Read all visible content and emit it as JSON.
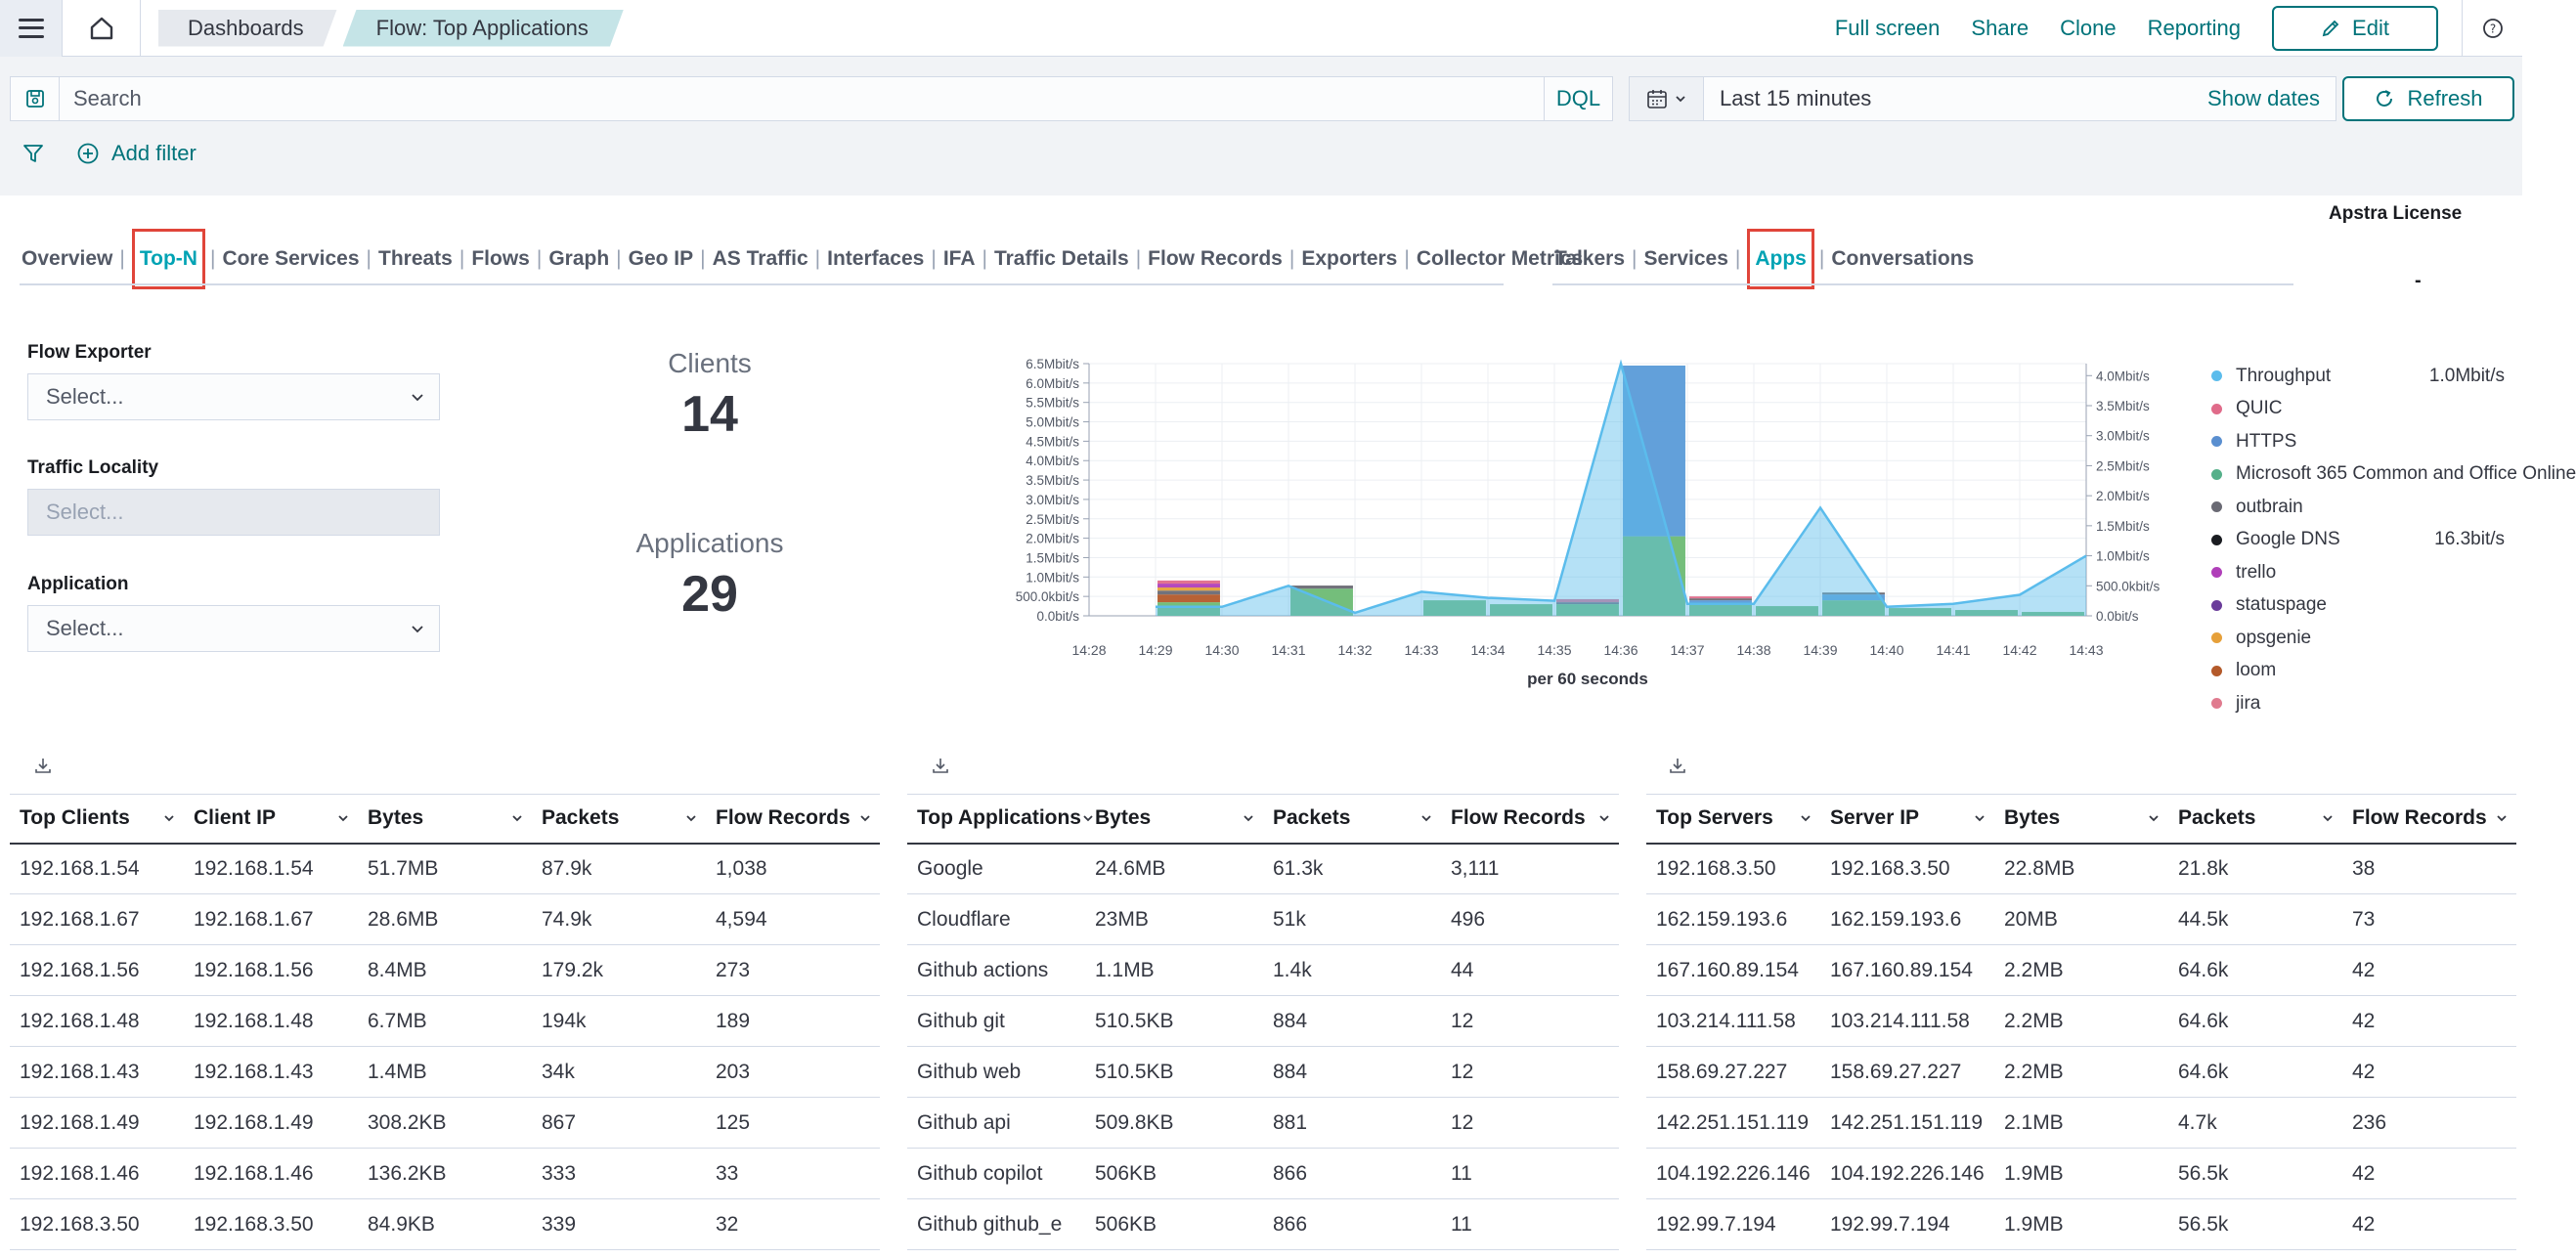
{
  "header": {
    "breadcrumbs": [
      "Dashboards",
      "Flow: Top Applications"
    ],
    "actions": [
      "Full screen",
      "Share",
      "Clone",
      "Reporting"
    ],
    "edit_label": "Edit"
  },
  "query": {
    "search_placeholder": "Search",
    "language": "DQL",
    "date_range": "Last 15 minutes",
    "show_dates": "Show dates",
    "refresh": "Refresh",
    "add_filter": "Add filter"
  },
  "nav": {
    "items": [
      "Overview",
      "Top-N",
      "Core Services",
      "Threats",
      "Flows",
      "Graph",
      "Geo IP",
      "AS Traffic",
      "Interfaces",
      "IFA",
      "Traffic Details",
      "Flow Records",
      "Exporters",
      "Collector Metrics"
    ],
    "active": "Top-N",
    "sub_items": [
      "Talkers",
      "Services",
      "Apps",
      "Conversations"
    ],
    "sub_active": "Apps"
  },
  "license": {
    "title": "Apstra License",
    "value": "-"
  },
  "controls": {
    "flow_exporter": {
      "label": "Flow Exporter",
      "placeholder": "Select..."
    },
    "traffic_locality": {
      "label": "Traffic Locality",
      "placeholder": "Select..."
    },
    "application": {
      "label": "Application",
      "placeholder": "Select..."
    }
  },
  "metrics": {
    "clients": {
      "label": "Clients",
      "value": "14"
    },
    "applications": {
      "label": "Applications",
      "value": "29"
    }
  },
  "chart_data": {
    "type": "bar",
    "xlabel": "per 60 seconds",
    "x_ticks": [
      "14:28",
      "14:29",
      "14:30",
      "14:31",
      "14:32",
      "14:33",
      "14:34",
      "14:35",
      "14:36",
      "14:37",
      "14:38",
      "14:39",
      "14:40",
      "14:41",
      "14:42",
      "14:43"
    ],
    "y_left_ticks": [
      "0.0bit/s",
      "500.0kbit/s",
      "1.0Mbit/s",
      "1.5Mbit/s",
      "2.0Mbit/s",
      "2.5Mbit/s",
      "3.0Mbit/s",
      "3.5Mbit/s",
      "4.0Mbit/s",
      "4.5Mbit/s",
      "5.0Mbit/s",
      "5.5Mbit/s",
      "6.0Mbit/s",
      "6.5Mbit/s"
    ],
    "y_right_ticks": [
      "0.0bit/s",
      "500.0kbit/s",
      "1.0Mbit/s",
      "1.5Mbit/s",
      "2.0Mbit/s",
      "2.5Mbit/s",
      "3.0Mbit/s",
      "3.5Mbit/s",
      "4.0Mbit/s"
    ],
    "ylim_left_mbit": [
      0,
      6.5
    ],
    "ylim_right_mbit": [
      0,
      4.2
    ],
    "bar_minutes": [
      "14:29",
      "14:31",
      "14:33",
      "14:34",
      "14:35",
      "14:36",
      "14:37",
      "14:38",
      "14:39",
      "14:40",
      "14:41",
      "14:42"
    ],
    "series": [
      {
        "name": "Microsoft 365 Common and Office Online",
        "color": "#6dbb74",
        "values_mbit": [
          0.35,
          0.7,
          0.4,
          0.3,
          0.3,
          2.05,
          0.32,
          0.25,
          0.4,
          0.2,
          0.15,
          0.1
        ]
      },
      {
        "name": "HTTPS",
        "color": "#5a9bd8",
        "values_mbit": [
          0.0,
          0.0,
          0.0,
          0.0,
          0.0,
          4.4,
          0.08,
          0.0,
          0.15,
          0.0,
          0.0,
          0.0
        ]
      },
      {
        "name": "loom",
        "color": "#b45a2a",
        "values_mbit": [
          0.2,
          0.0,
          0.0,
          0.0,
          0.0,
          0.0,
          0.0,
          0.0,
          0.0,
          0.0,
          0.0,
          0.0
        ]
      },
      {
        "name": "outbrain",
        "color": "#6a6a74",
        "values_mbit": [
          0.1,
          0.08,
          0.0,
          0.0,
          0.05,
          0.0,
          0.05,
          0.0,
          0.05,
          0.0,
          0.0,
          0.0
        ]
      },
      {
        "name": "opsgenie",
        "color": "#e6a03a",
        "values_mbit": [
          0.08,
          0.0,
          0.0,
          0.0,
          0.0,
          0.0,
          0.0,
          0.0,
          0.0,
          0.0,
          0.0,
          0.0
        ]
      },
      {
        "name": "trello",
        "color": "#b03fb9",
        "values_mbit": [
          0.1,
          0.0,
          0.0,
          0.0,
          0.0,
          0.0,
          0.0,
          0.0,
          0.0,
          0.0,
          0.0,
          0.0
        ]
      },
      {
        "name": "QUIC",
        "color": "#e06b8a",
        "values_mbit": [
          0.08,
          0.0,
          0.0,
          0.0,
          0.08,
          0.0,
          0.05,
          0.0,
          0.0,
          0.0,
          0.0,
          0.0
        ]
      }
    ],
    "throughput": {
      "name": "Throughput",
      "color": "#5bbcec",
      "axis": "right",
      "times": [
        "14:29",
        "14:30",
        "14:31",
        "14:32",
        "14:33",
        "14:34",
        "14:35",
        "14:36",
        "14:37",
        "14:38",
        "14:39",
        "14:40",
        "14:41",
        "14:42",
        "14:43"
      ],
      "values_mbit": [
        0.15,
        0.15,
        0.5,
        0.05,
        0.4,
        0.3,
        0.25,
        4.2,
        0.2,
        0.2,
        1.8,
        0.15,
        0.2,
        0.35,
        1.0
      ]
    }
  },
  "legend": [
    {
      "name": "Throughput",
      "color": "#5bbcec",
      "value": "1.0Mbit/s"
    },
    {
      "name": "QUIC",
      "color": "#e06b8a",
      "value": ""
    },
    {
      "name": "HTTPS",
      "color": "#5a8fd0",
      "value": ""
    },
    {
      "name": "Microsoft 365 Common and Office Online",
      "color": "#55b08a",
      "value": ""
    },
    {
      "name": "outbrain",
      "color": "#6a6a74",
      "value": ""
    },
    {
      "name": "Google DNS",
      "color": "#1a1c21",
      "value": "16.3bit/s"
    },
    {
      "name": "trello",
      "color": "#b03fb9",
      "value": ""
    },
    {
      "name": "statuspage",
      "color": "#6a3c9a",
      "value": ""
    },
    {
      "name": "opsgenie",
      "color": "#e6a03a",
      "value": ""
    },
    {
      "name": "loom",
      "color": "#b45a2a",
      "value": ""
    },
    {
      "name": "jira",
      "color": "#e07b8f",
      "value": ""
    }
  ],
  "tables": [
    {
      "headers": [
        "Top Clients",
        "Client IP",
        "Bytes",
        "Packets",
        "Flow Records"
      ],
      "rows": [
        [
          "192.168.1.54",
          "192.168.1.54",
          "51.7MB",
          "87.9k",
          "1,038"
        ],
        [
          "192.168.1.67",
          "192.168.1.67",
          "28.6MB",
          "74.9k",
          "4,594"
        ],
        [
          "192.168.1.56",
          "192.168.1.56",
          "8.4MB",
          "179.2k",
          "273"
        ],
        [
          "192.168.1.48",
          "192.168.1.48",
          "6.7MB",
          "194k",
          "189"
        ],
        [
          "192.168.1.43",
          "192.168.1.43",
          "1.4MB",
          "34k",
          "203"
        ],
        [
          "192.168.1.49",
          "192.168.1.49",
          "308.2KB",
          "867",
          "125"
        ],
        [
          "192.168.1.46",
          "192.168.1.46",
          "136.2KB",
          "333",
          "33"
        ],
        [
          "192.168.3.50",
          "192.168.3.50",
          "84.9KB",
          "339",
          "32"
        ]
      ]
    },
    {
      "headers": [
        "Top Applications",
        "Bytes",
        "Packets",
        "Flow Records"
      ],
      "rows": [
        [
          "Google",
          "24.6MB",
          "61.3k",
          "3,111"
        ],
        [
          "Cloudflare",
          "23MB",
          "51k",
          "496"
        ],
        [
          "Github actions",
          "1.1MB",
          "1.4k",
          "44"
        ],
        [
          "Github git",
          "510.5KB",
          "884",
          "12"
        ],
        [
          "Github web",
          "510.5KB",
          "884",
          "12"
        ],
        [
          "Github api",
          "509.8KB",
          "881",
          "12"
        ],
        [
          "Github copilot",
          "506KB",
          "866",
          "11"
        ],
        [
          "Github github_e",
          "506KB",
          "866",
          "11"
        ]
      ]
    },
    {
      "headers": [
        "Top Servers",
        "Server IP",
        "Bytes",
        "Packets",
        "Flow Records"
      ],
      "rows": [
        [
          "192.168.3.50",
          "192.168.3.50",
          "22.8MB",
          "21.8k",
          "38"
        ],
        [
          "162.159.193.6",
          "162.159.193.6",
          "20MB",
          "44.5k",
          "73"
        ],
        [
          "167.160.89.154",
          "167.160.89.154",
          "2.2MB",
          "64.6k",
          "42"
        ],
        [
          "103.214.111.58",
          "103.214.111.58",
          "2.2MB",
          "64.6k",
          "42"
        ],
        [
          "158.69.27.227",
          "158.69.27.227",
          "2.2MB",
          "64.6k",
          "42"
        ],
        [
          "142.251.151.119",
          "142.251.151.119",
          "2.1MB",
          "4.7k",
          "236"
        ],
        [
          "104.192.226.146",
          "104.192.226.146",
          "1.9MB",
          "56.5k",
          "42"
        ],
        [
          "192.99.7.194",
          "192.99.7.194",
          "1.9MB",
          "56.5k",
          "42"
        ]
      ]
    }
  ]
}
